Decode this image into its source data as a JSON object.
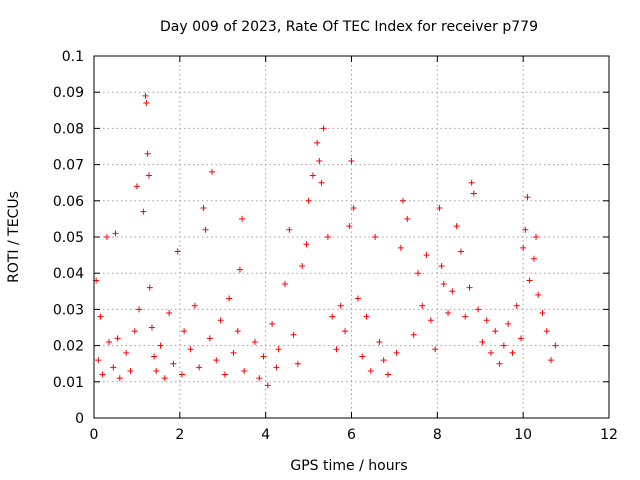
{
  "chart_data": {
    "type": "scatter",
    "title": "Day 009 of 2023, Rate Of TEC Index for receiver p779",
    "xlabel": "GPS time / hours",
    "ylabel": "ROTI / TECUs",
    "xlim": [
      0,
      12
    ],
    "ylim": [
      0,
      0.1
    ],
    "xticks": [
      "0",
      "2",
      "4",
      "6",
      "8",
      "10",
      "12"
    ],
    "yticks": [
      "0",
      "0.01",
      "0.02",
      "0.03",
      "0.04",
      "0.05",
      "0.06",
      "0.07",
      "0.08",
      "0.09",
      "0.1"
    ],
    "grid": true,
    "marker": "plus",
    "color": "#ff0000",
    "series": [
      {
        "name": "ROTI",
        "x": [
          0.05,
          0.1,
          0.15,
          0.2,
          0.3,
          0.35,
          0.45,
          0.5,
          0.55,
          0.6,
          0.75,
          0.85,
          0.95,
          1.0,
          1.05,
          1.15,
          1.2,
          1.22,
          1.25,
          1.28,
          1.3,
          1.35,
          1.4,
          1.45,
          1.55,
          1.65,
          1.75,
          1.85,
          1.95,
          2.05,
          2.1,
          2.25,
          2.35,
          2.45,
          2.55,
          2.6,
          2.7,
          2.75,
          2.85,
          2.95,
          3.05,
          3.15,
          3.25,
          3.35,
          3.4,
          3.45,
          3.5,
          3.75,
          3.85,
          3.95,
          4.05,
          4.15,
          4.25,
          4.3,
          4.45,
          4.55,
          4.65,
          4.75,
          4.85,
          4.95,
          5.0,
          5.1,
          5.2,
          5.25,
          5.3,
          5.35,
          5.45,
          5.55,
          5.65,
          5.75,
          5.85,
          5.95,
          6.0,
          6.05,
          6.15,
          6.25,
          6.35,
          6.45,
          6.55,
          6.65,
          6.75,
          6.85,
          7.05,
          7.15,
          7.2,
          7.3,
          7.45,
          7.55,
          7.65,
          7.75,
          7.85,
          7.95,
          8.05,
          8.1,
          8.15,
          8.25,
          8.35,
          8.45,
          8.55,
          8.65,
          8.75,
          8.8,
          8.85,
          8.95,
          9.05,
          9.15,
          9.25,
          9.35,
          9.45,
          9.55,
          9.65,
          9.75,
          9.85,
          9.95,
          10.0,
          10.05,
          10.1,
          10.15,
          10.25,
          10.3,
          10.35,
          10.45,
          10.55,
          10.65,
          10.75
        ],
        "y": [
          0.038,
          0.016,
          0.028,
          0.012,
          0.05,
          0.021,
          0.014,
          0.051,
          0.022,
          0.011,
          0.018,
          0.013,
          0.024,
          0.064,
          0.03,
          0.057,
          0.089,
          0.087,
          0.073,
          0.067,
          0.036,
          0.025,
          0.017,
          0.013,
          0.02,
          0.011,
          0.029,
          0.015,
          0.046,
          0.012,
          0.024,
          0.019,
          0.031,
          0.014,
          0.058,
          0.052,
          0.022,
          0.068,
          0.016,
          0.027,
          0.012,
          0.033,
          0.018,
          0.024,
          0.041,
          0.055,
          0.013,
          0.021,
          0.011,
          0.017,
          0.009,
          0.026,
          0.014,
          0.019,
          0.037,
          0.052,
          0.023,
          0.015,
          0.042,
          0.048,
          0.06,
          0.067,
          0.076,
          0.071,
          0.065,
          0.08,
          0.05,
          0.028,
          0.019,
          0.031,
          0.024,
          0.053,
          0.071,
          0.058,
          0.033,
          0.017,
          0.028,
          0.013,
          0.05,
          0.021,
          0.016,
          0.012,
          0.018,
          0.047,
          0.06,
          0.055,
          0.023,
          0.04,
          0.031,
          0.045,
          0.027,
          0.019,
          0.058,
          0.042,
          0.037,
          0.029,
          0.035,
          0.053,
          0.046,
          0.028,
          0.036,
          0.065,
          0.062,
          0.03,
          0.021,
          0.027,
          0.018,
          0.024,
          0.015,
          0.02,
          0.026,
          0.018,
          0.031,
          0.022,
          0.047,
          0.052,
          0.061,
          0.038,
          0.044,
          0.05,
          0.034,
          0.029,
          0.024,
          0.016,
          0.02
        ]
      }
    ]
  }
}
